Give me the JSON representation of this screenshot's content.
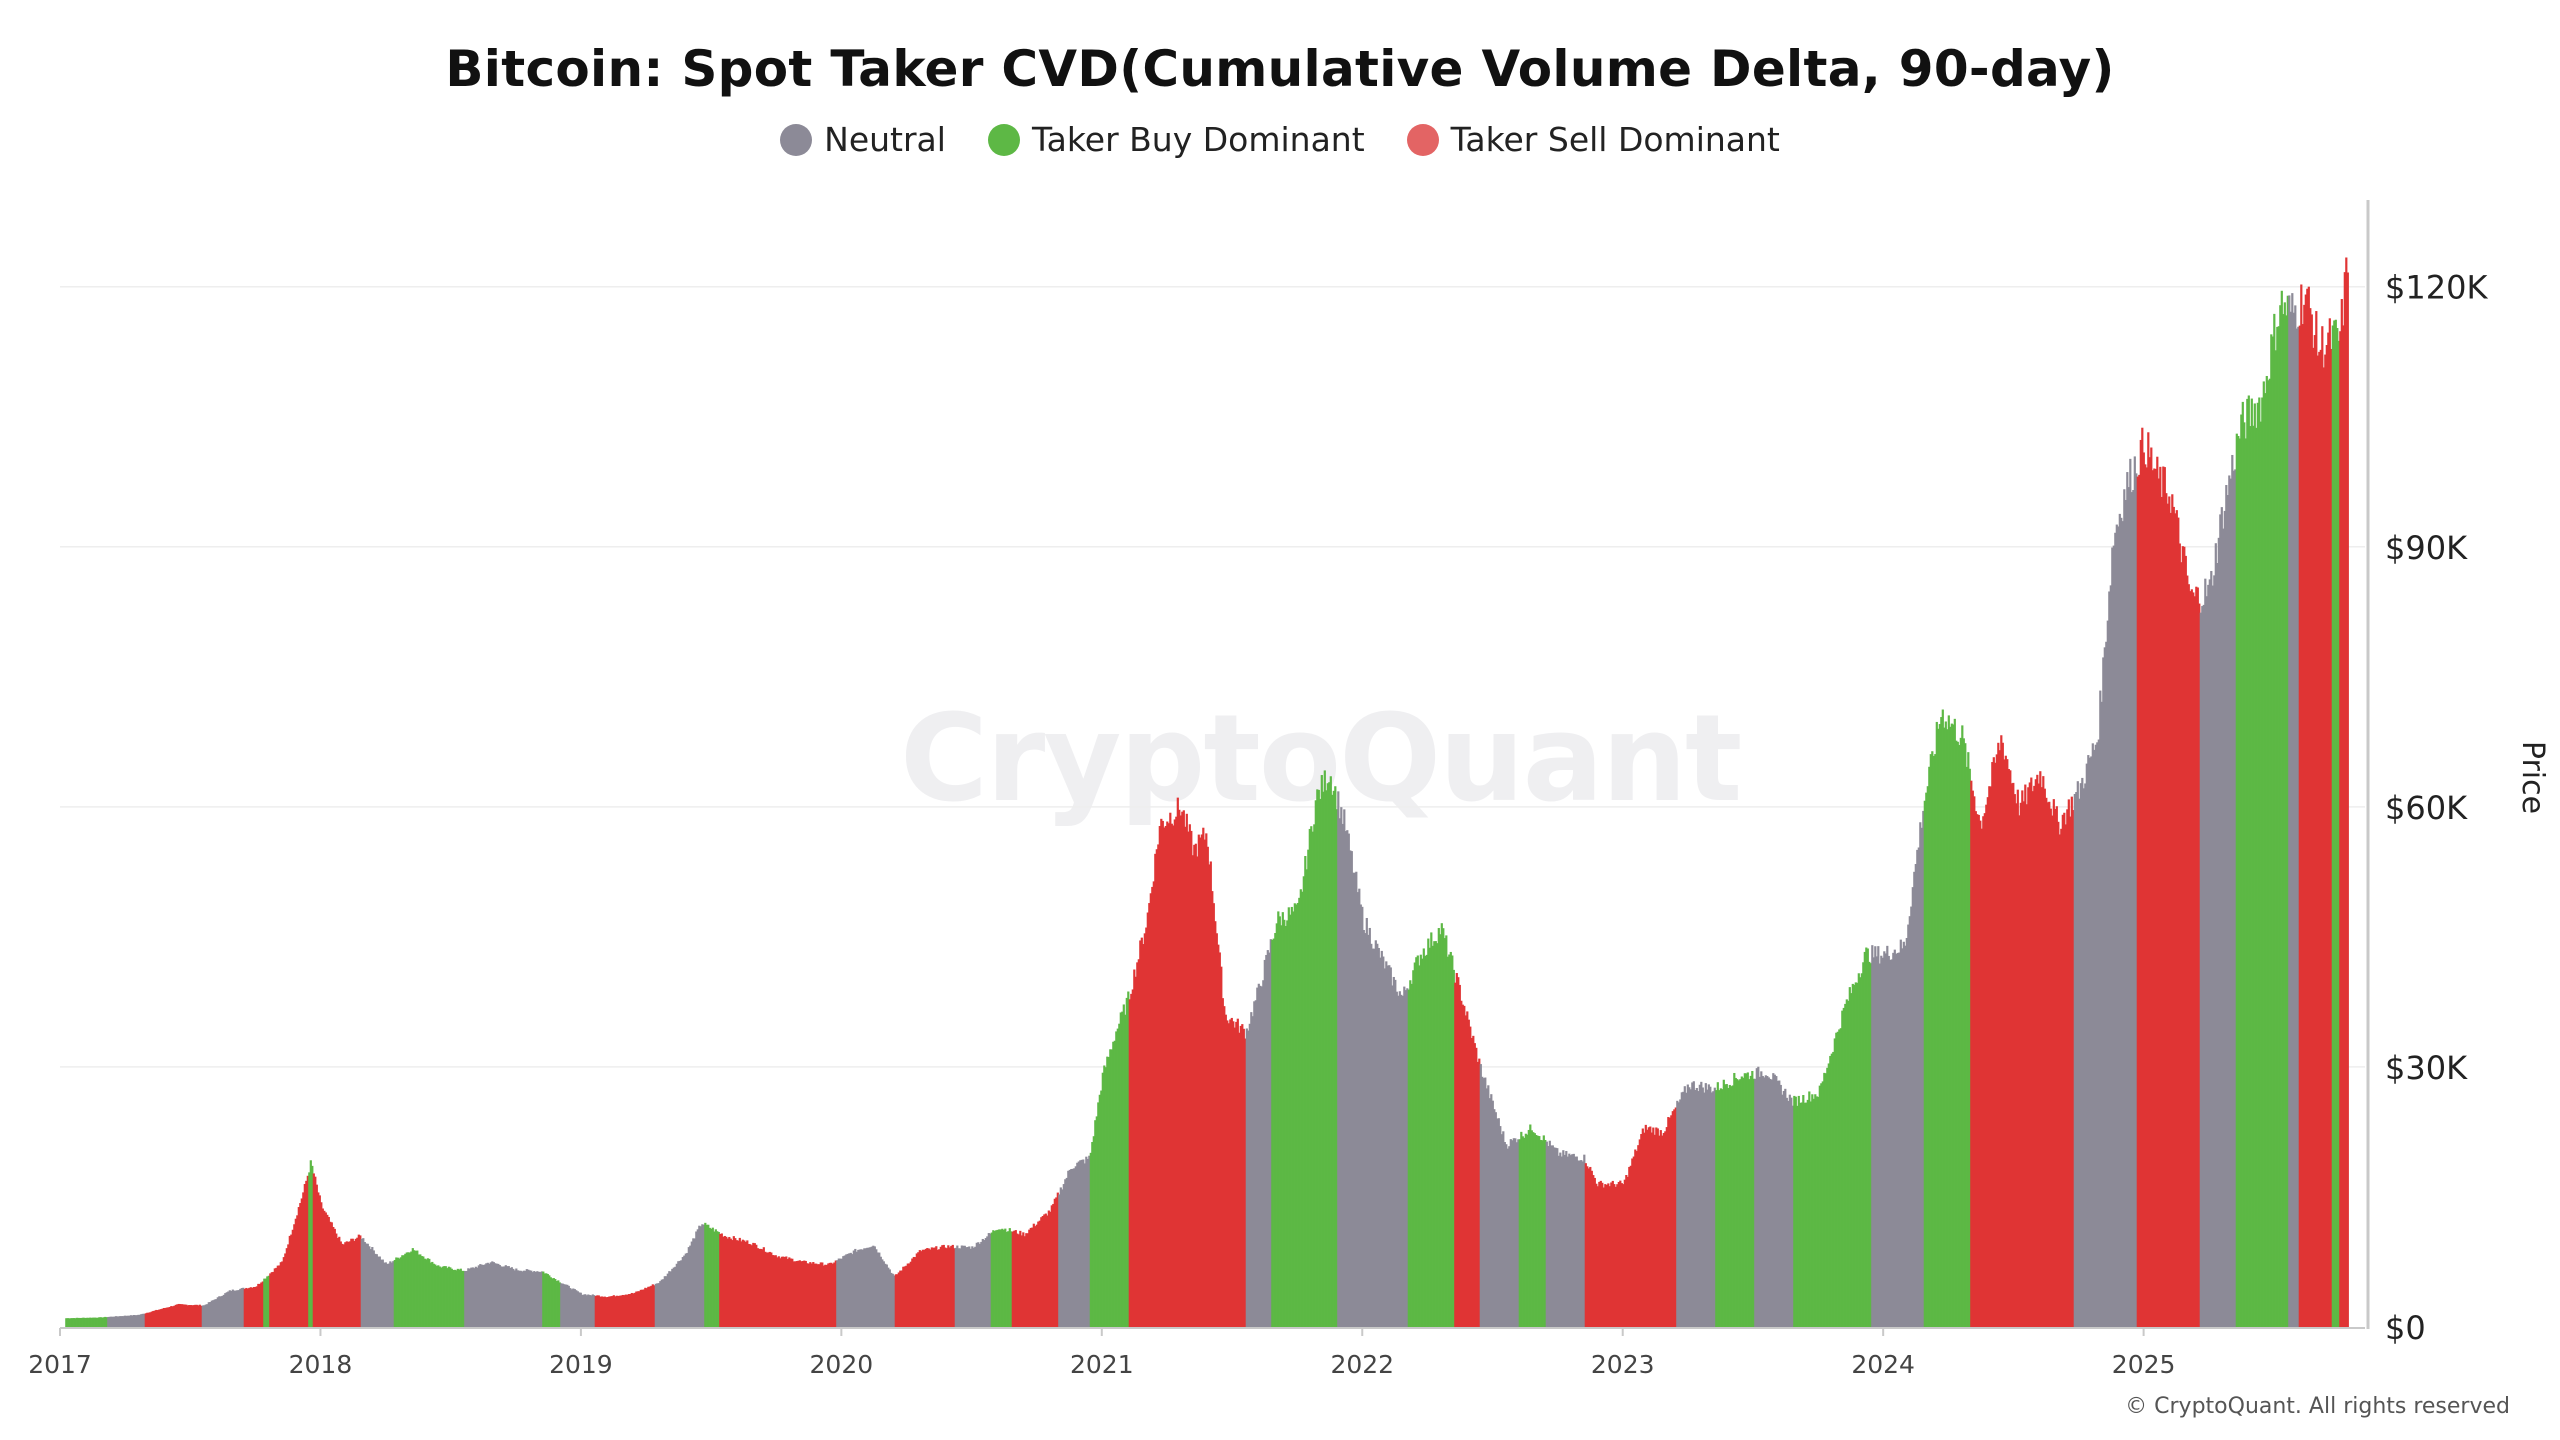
{
  "title": "Bitcoin: Spot Taker CVD(Cumulative Volume Delta, 90-day)",
  "watermark": "CryptoQuant",
  "copyright": "© CryptoQuant. All rights reserved",
  "colors": {
    "neutral": "#8c8a97",
    "buy": "#5db845",
    "sell": "#e03434",
    "axis": "#c9c9c9",
    "grid": "#eeeeee",
    "tick_text": "#444444"
  },
  "chart_data": {
    "type": "bar",
    "title": "Bitcoin: Spot Taker CVD(Cumulative Volume Delta, 90-day)",
    "xlabel": "",
    "ylabel": "Price",
    "y_axis_side": "right",
    "ylim": [
      0,
      130000
    ],
    "yticks": [
      0,
      30000,
      60000,
      90000,
      120000
    ],
    "ytick_labels": [
      "$0",
      "$30K",
      "$60K",
      "$90K",
      "$120K"
    ],
    "xlim": [
      2017.0,
      2025.85
    ],
    "xticks": [
      2017,
      2018,
      2019,
      2020,
      2021,
      2022,
      2023,
      2024,
      2025
    ],
    "xtick_labels": [
      "2017",
      "2018",
      "2019",
      "2020",
      "2021",
      "2022",
      "2023",
      "2024",
      "2025"
    ],
    "legend": {
      "position": "top-center",
      "entries": [
        {
          "key": "neutral",
          "label": "Neutral"
        },
        {
          "key": "buy",
          "label": "Taker Buy Dominant"
        },
        {
          "key": "sell",
          "label": "Taker Sell Dominant"
        }
      ]
    },
    "price_series": {
      "name": "Price",
      "x": [
        2017.0,
        2017.15,
        2017.3,
        2017.45,
        2017.55,
        2017.65,
        2017.75,
        2017.85,
        2017.93,
        2017.96,
        2018.0,
        2018.08,
        2018.15,
        2018.25,
        2018.35,
        2018.45,
        2018.55,
        2018.65,
        2018.75,
        2018.85,
        2018.9,
        2019.0,
        2019.1,
        2019.2,
        2019.3,
        2019.4,
        2019.46,
        2019.55,
        2019.65,
        2019.75,
        2019.85,
        2019.95,
        2020.05,
        2020.12,
        2020.2,
        2020.3,
        2020.4,
        2020.5,
        2020.6,
        2020.7,
        2020.8,
        2020.88,
        2020.95,
        2021.0,
        2021.05,
        2021.1,
        2021.17,
        2021.22,
        2021.3,
        2021.35,
        2021.4,
        2021.47,
        2021.55,
        2021.6,
        2021.67,
        2021.75,
        2021.82,
        2021.87,
        2021.93,
        2022.0,
        2022.08,
        2022.15,
        2022.22,
        2022.3,
        2022.37,
        2022.45,
        2022.55,
        2022.65,
        2022.75,
        2022.85,
        2022.9,
        2023.0,
        2023.08,
        2023.15,
        2023.25,
        2023.35,
        2023.45,
        2023.55,
        2023.65,
        2023.75,
        2023.85,
        2023.93,
        2024.0,
        2024.08,
        2024.15,
        2024.22,
        2024.3,
        2024.37,
        2024.45,
        2024.52,
        2024.6,
        2024.67,
        2024.75,
        2024.82,
        2024.88,
        2024.93,
        2025.0,
        2025.05,
        2025.1,
        2025.18,
        2025.25,
        2025.3,
        2025.37,
        2025.45,
        2025.52,
        2025.57,
        2025.62,
        2025.67,
        2025.72,
        2025.75,
        2025.78
      ],
      "y": [
        1000,
        1100,
        1400,
        2600,
        2500,
        4200,
        4700,
        7500,
        15500,
        19000,
        14000,
        9500,
        10500,
        7200,
        9000,
        7000,
        6500,
        7500,
        6600,
        6400,
        5500,
        3800,
        3500,
        3900,
        5200,
        8500,
        12000,
        10500,
        9700,
        8200,
        7500,
        7200,
        8800,
        9500,
        5800,
        8800,
        9300,
        9200,
        11500,
        10700,
        13500,
        18500,
        19500,
        29000,
        34000,
        38000,
        47000,
        58000,
        60000,
        55000,
        57000,
        36000,
        34000,
        39000,
        47000,
        48000,
        61000,
        64000,
        58000,
        47000,
        42000,
        38000,
        43000,
        46000,
        39000,
        30000,
        21000,
        23000,
        20000,
        19500,
        16500,
        16500,
        23000,
        22500,
        28000,
        27500,
        29000,
        29500,
        26000,
        27000,
        37000,
        43000,
        43000,
        44000,
        60000,
        71000,
        68000,
        58000,
        68000,
        60000,
        64000,
        58000,
        62000,
        68000,
        91000,
        97000,
        102000,
        98000,
        96000,
        84000,
        85000,
        94000,
        104000,
        107000,
        118000,
        117000,
        119000,
        113000,
        114000,
        114000,
        123000
      ]
    },
    "regime_segments": [
      {
        "start": 2017.0,
        "end": 2017.18,
        "state": "buy"
      },
      {
        "start": 2017.18,
        "end": 2017.32,
        "state": "neutral"
      },
      {
        "start": 2017.32,
        "end": 2017.54,
        "state": "sell"
      },
      {
        "start": 2017.54,
        "end": 2017.7,
        "state": "neutral"
      },
      {
        "start": 2017.7,
        "end": 2017.78,
        "state": "sell"
      },
      {
        "start": 2017.78,
        "end": 2017.8,
        "state": "buy"
      },
      {
        "start": 2017.8,
        "end": 2017.95,
        "state": "sell"
      },
      {
        "start": 2017.95,
        "end": 2017.97,
        "state": "buy"
      },
      {
        "start": 2017.97,
        "end": 2018.15,
        "state": "sell"
      },
      {
        "start": 2018.15,
        "end": 2018.28,
        "state": "neutral"
      },
      {
        "start": 2018.28,
        "end": 2018.55,
        "state": "buy"
      },
      {
        "start": 2018.55,
        "end": 2018.85,
        "state": "neutral"
      },
      {
        "start": 2018.85,
        "end": 2018.92,
        "state": "buy"
      },
      {
        "start": 2018.92,
        "end": 2019.05,
        "state": "neutral"
      },
      {
        "start": 2019.05,
        "end": 2019.28,
        "state": "sell"
      },
      {
        "start": 2019.28,
        "end": 2019.47,
        "state": "neutral"
      },
      {
        "start": 2019.47,
        "end": 2019.53,
        "state": "buy"
      },
      {
        "start": 2019.53,
        "end": 2019.98,
        "state": "sell"
      },
      {
        "start": 2019.98,
        "end": 2020.2,
        "state": "neutral"
      },
      {
        "start": 2020.2,
        "end": 2020.43,
        "state": "sell"
      },
      {
        "start": 2020.43,
        "end": 2020.57,
        "state": "neutral"
      },
      {
        "start": 2020.57,
        "end": 2020.65,
        "state": "buy"
      },
      {
        "start": 2020.65,
        "end": 2020.83,
        "state": "sell"
      },
      {
        "start": 2020.83,
        "end": 2020.95,
        "state": "neutral"
      },
      {
        "start": 2020.95,
        "end": 2021.1,
        "state": "buy"
      },
      {
        "start": 2021.1,
        "end": 2021.55,
        "state": "sell"
      },
      {
        "start": 2021.55,
        "end": 2021.65,
        "state": "neutral"
      },
      {
        "start": 2021.65,
        "end": 2021.9,
        "state": "buy"
      },
      {
        "start": 2021.9,
        "end": 2022.17,
        "state": "neutral"
      },
      {
        "start": 2022.17,
        "end": 2022.35,
        "state": "buy"
      },
      {
        "start": 2022.35,
        "end": 2022.45,
        "state": "sell"
      },
      {
        "start": 2022.45,
        "end": 2022.6,
        "state": "neutral"
      },
      {
        "start": 2022.6,
        "end": 2022.7,
        "state": "buy"
      },
      {
        "start": 2022.7,
        "end": 2022.85,
        "state": "neutral"
      },
      {
        "start": 2022.85,
        "end": 2023.2,
        "state": "sell"
      },
      {
        "start": 2023.2,
        "end": 2023.35,
        "state": "neutral"
      },
      {
        "start": 2023.35,
        "end": 2023.5,
        "state": "buy"
      },
      {
        "start": 2023.5,
        "end": 2023.65,
        "state": "neutral"
      },
      {
        "start": 2023.65,
        "end": 2023.95,
        "state": "buy"
      },
      {
        "start": 2023.95,
        "end": 2024.15,
        "state": "neutral"
      },
      {
        "start": 2024.15,
        "end": 2024.33,
        "state": "buy"
      },
      {
        "start": 2024.33,
        "end": 2024.73,
        "state": "sell"
      },
      {
        "start": 2024.73,
        "end": 2024.97,
        "state": "neutral"
      },
      {
        "start": 2024.97,
        "end": 2025.21,
        "state": "sell"
      },
      {
        "start": 2025.21,
        "end": 2025.35,
        "state": "neutral"
      },
      {
        "start": 2025.35,
        "end": 2025.55,
        "state": "buy"
      },
      {
        "start": 2025.55,
        "end": 2025.59,
        "state": "neutral"
      },
      {
        "start": 2025.59,
        "end": 2025.72,
        "state": "sell"
      },
      {
        "start": 2025.72,
        "end": 2025.75,
        "state": "buy"
      },
      {
        "start": 2025.75,
        "end": 2025.8,
        "state": "sell"
      }
    ]
  }
}
